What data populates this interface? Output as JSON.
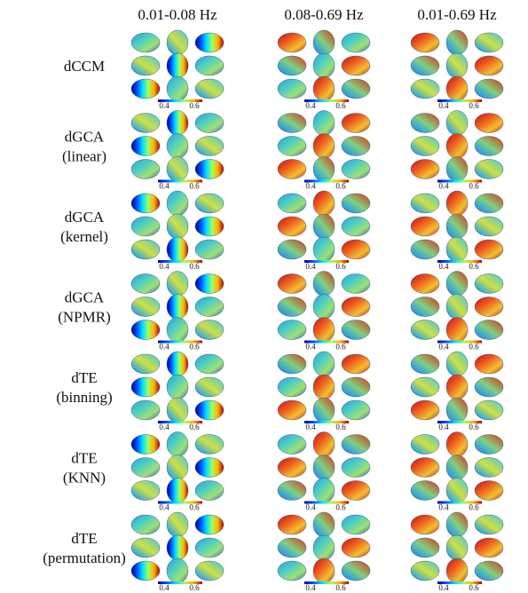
{
  "columns": [
    "0.01-0.08 Hz",
    "0.08-0.69 Hz",
    "0.01-0.69 Hz"
  ],
  "rows": [
    {
      "label": [
        "dCCM"
      ],
      "colorbars": [
        [
          "0.4",
          "0.6"
        ],
        [
          "0.4",
          "0.6"
        ],
        [
          "0.4",
          "0.6"
        ]
      ]
    },
    {
      "label": [
        "dGCA",
        "(linear)"
      ],
      "colorbars": [
        [
          "0.4",
          "0.6"
        ],
        [
          "0.4",
          "0.6"
        ],
        [
          "0.4",
          "0.6"
        ]
      ]
    },
    {
      "label": [
        "dGCA",
        "(kernel)"
      ],
      "colorbars": [
        [
          "0.4",
          "0.6"
        ],
        [
          "0.4",
          "0.6"
        ],
        [
          "0.4",
          "0.6"
        ]
      ]
    },
    {
      "label": [
        "dGCA",
        "(NPMR)"
      ],
      "colorbars": [
        [
          "0.4",
          "0.6"
        ],
        [
          "0.4",
          "0.6"
        ],
        [
          "0.4",
          "0.6"
        ]
      ]
    },
    {
      "label": [
        "dTE",
        "(binning)"
      ],
      "colorbars": [
        [
          "0.4",
          "0.6"
        ],
        [
          "0.4",
          "0.6"
        ],
        [
          "0.4",
          "0.6"
        ]
      ]
    },
    {
      "label": [
        "dTE",
        "(KNN)"
      ],
      "colorbars": [
        [
          "0.4",
          "0.6"
        ],
        [
          "0.4",
          "0.6"
        ],
        [
          "0.4",
          "0.6"
        ]
      ]
    },
    {
      "label": [
        "dTE",
        "(permutation)"
      ],
      "colorbars": [
        [
          "0.4",
          "0.6"
        ],
        [
          "0.4",
          "0.6"
        ],
        [
          "0.4",
          "0.6"
        ]
      ]
    }
  ]
}
